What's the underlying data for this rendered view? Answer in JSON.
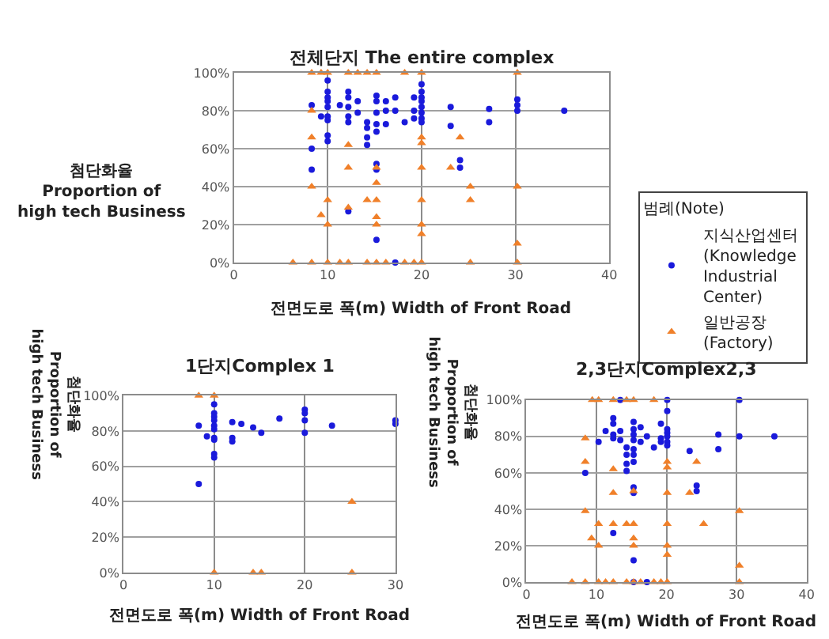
{
  "chart_data": [
    {
      "type": "scatter",
      "title": "전체단지 The entire complex",
      "xlabel": "전면도로 폭(m) Width of Front Road",
      "ylabel": "첨단화율\nProportion of\nhigh tech Business",
      "legend_title": "범례(Note)",
      "legend": "right",
      "grid": true,
      "xlim": [
        0,
        40
      ],
      "xticks": [
        0,
        10,
        20,
        30,
        40
      ],
      "ylim": [
        0,
        1
      ],
      "yticks": [
        {
          "value": 0,
          "label": "0%"
        },
        {
          "value": 0.2,
          "label": "20%"
        },
        {
          "value": 0.4,
          "label": "40%"
        },
        {
          "value": 0.6,
          "label": "60%"
        },
        {
          "value": 0.8,
          "label": "80%"
        },
        {
          "value": 1,
          "label": "100%"
        }
      ],
      "series": [
        {
          "name": "지식산업센터(Knowledge Industrial Center)",
          "color": "#1a1adb",
          "marker": "circle",
          "x": [
            8.3,
            8.3,
            8.3,
            9.3,
            10,
            10,
            10,
            10,
            10,
            10,
            10,
            10,
            10,
            11.3,
            12.2,
            12.2,
            12.2,
            12.2,
            12.2,
            12.2,
            13.2,
            13.2,
            14.2,
            14.2,
            14.2,
            14.2,
            15.2,
            15.2,
            15.2,
            15.2,
            15.2,
            15.2,
            15.2,
            15.2,
            16.2,
            16.2,
            16.2,
            17.2,
            17.2,
            17.2,
            18.2,
            19.2,
            19.2,
            19.2,
            20,
            20,
            20,
            20,
            20,
            20,
            20,
            20,
            23.1,
            23.1,
            24.1,
            24.1,
            27.2,
            27.2,
            30.2,
            30.2,
            30.2,
            35.2
          ],
          "values": [
            0.83,
            0.6,
            0.49,
            0.77,
            0.96,
            0.9,
            0.87,
            0.85,
            0.82,
            0.77,
            0.75,
            0.67,
            0.64,
            0.83,
            0.9,
            0.87,
            0.82,
            0.77,
            0.74,
            0.27,
            0.85,
            0.79,
            0.74,
            0.71,
            0.66,
            0.62,
            0.88,
            0.85,
            0.79,
            0.73,
            0.69,
            0.52,
            0.49,
            0.12,
            0.85,
            0.8,
            0.73,
            0.87,
            0.8,
            0,
            0.74,
            0.87,
            0.8,
            0.76,
            0.94,
            0.9,
            0.87,
            0.85,
            0.82,
            0.79,
            0.76,
            0.74,
            0.82,
            0.72,
            0.54,
            0.5,
            0.81,
            0.74,
            0.86,
            0.83,
            0.8,
            0.8
          ]
        },
        {
          "name": "일반공장(Factory)",
          "color": "#f0802a",
          "marker": "triangle",
          "x": [
            6.3,
            8.3,
            8.3,
            8.3,
            8.3,
            8.3,
            9.3,
            9.3,
            10,
            10,
            10,
            10,
            11.3,
            12.2,
            12.2,
            12.2,
            12.2,
            12.2,
            13.2,
            14.2,
            14.2,
            14.2,
            15.2,
            15.2,
            15.2,
            15.2,
            15.2,
            15.2,
            15.2,
            16.2,
            18.2,
            18.2,
            19.2,
            20,
            20,
            20,
            20,
            20,
            20,
            20,
            20,
            23.1,
            24.1,
            25.2,
            25.2,
            25.2,
            30.2,
            30.2,
            30.2,
            30.2
          ],
          "values": [
            0,
            1,
            0.8,
            0.66,
            0.4,
            0,
            1,
            0.25,
            1,
            0.33,
            0.2,
            0,
            0,
            1,
            0.62,
            0.5,
            0.29,
            0,
            1,
            1,
            0.33,
            0,
            1,
            0.5,
            0.42,
            0.33,
            0.24,
            0.2,
            0,
            0,
            1,
            0,
            0,
            1,
            0.66,
            0.63,
            0.5,
            0.33,
            0.2,
            0.15,
            0,
            0.5,
            0.66,
            0.4,
            0.33,
            0,
            1,
            0.4,
            0.1,
            0
          ]
        }
      ]
    },
    {
      "type": "scatter",
      "title": "1단지Complex 1",
      "xlabel": "전면도로 폭(m) Width of Front Road",
      "ylabel": "첨단화율\nProportion of\nhigh tech Business",
      "grid": true,
      "xlim": [
        0,
        30
      ],
      "xticks": [
        0,
        10,
        20,
        30
      ],
      "ylim": [
        0,
        1
      ],
      "yticks": [
        {
          "value": 0,
          "label": "0%"
        },
        {
          "value": 0.2,
          "label": "20%"
        },
        {
          "value": 0.4,
          "label": "40%"
        },
        {
          "value": 0.6,
          "label": "60%"
        },
        {
          "value": 0.8,
          "label": "80%"
        },
        {
          "value": 1,
          "label": "100%"
        }
      ],
      "series": [
        {
          "color": "#1a1adb",
          "marker": "circle",
          "x": [
            8.3,
            8.3,
            9.2,
            10,
            10,
            10,
            10,
            10,
            10,
            10,
            10,
            10,
            10,
            12,
            12,
            12,
            13,
            14.3,
            15.2,
            17.2,
            20,
            20,
            20,
            20,
            23,
            30,
            30
          ],
          "values": [
            0.83,
            0.5,
            0.77,
            0.95,
            0.9,
            0.88,
            0.86,
            0.83,
            0.81,
            0.76,
            0.75,
            0.67,
            0.65,
            0.85,
            0.76,
            0.74,
            0.84,
            0.82,
            0.79,
            0.87,
            0.92,
            0.9,
            0.86,
            0.79,
            0.83,
            0.86,
            0.84
          ]
        },
        {
          "color": "#f0802a",
          "marker": "triangle",
          "x": [
            8.3,
            10,
            10,
            14.3,
            15.2,
            25.2,
            25.2
          ],
          "values": [
            1,
            1,
            0,
            0,
            0,
            0.4,
            0
          ]
        }
      ]
    },
    {
      "type": "scatter",
      "title": "2,3단지Complex2,3",
      "xlabel": "전면도로 폭(m) Width of Front Road",
      "ylabel": "첨단화율\nProportion of\nhigh tech Business",
      "grid": true,
      "xlim": [
        0,
        40
      ],
      "xticks": [
        0,
        10,
        20,
        30,
        40
      ],
      "ylim": [
        0,
        1
      ],
      "yticks": [
        {
          "value": 0,
          "label": "0%"
        },
        {
          "value": 0.2,
          "label": "20%"
        },
        {
          "value": 0.4,
          "label": "40%"
        },
        {
          "value": 0.6,
          "label": "60%"
        },
        {
          "value": 0.8,
          "label": "80%"
        },
        {
          "value": 1,
          "label": "100%"
        }
      ],
      "series": [
        {
          "color": "#1a1adb",
          "marker": "circle",
          "x": [
            8.4,
            10.3,
            11.3,
            12.4,
            12.4,
            12.4,
            12.4,
            12.4,
            13.4,
            13.4,
            13.4,
            14.3,
            14.3,
            14.3,
            14.3,
            15.3,
            15.3,
            15.3,
            15.3,
            15.3,
            15.3,
            15.3,
            15.3,
            15.3,
            15.3,
            15.3,
            16.3,
            16.3,
            17.2,
            17.2,
            18.2,
            19.2,
            19.2,
            19.2,
            20.1,
            20.1,
            20.1,
            20.1,
            20.1,
            20.1,
            20.1,
            23.3,
            24.3,
            24.3,
            27.4,
            27.4,
            30.4,
            30.4,
            35.4
          ],
          "values": [
            0.6,
            0.77,
            0.83,
            0.9,
            0.87,
            0.81,
            0.79,
            0.27,
            1,
            0.83,
            0.78,
            0.74,
            0.7,
            0.65,
            0.61,
            0.88,
            0.84,
            0.81,
            0.78,
            0.73,
            0.7,
            0.66,
            0.52,
            0.49,
            0.12,
            0,
            0.85,
            0.77,
            0.8,
            0,
            0.74,
            0.87,
            0.79,
            0.77,
            1,
            0.94,
            0.84,
            0.82,
            0.8,
            0.77,
            0.75,
            0.72,
            0.53,
            0.5,
            0.81,
            0.73,
            1,
            0.8,
            0.8
          ]
        },
        {
          "color": "#f0802a",
          "marker": "triangle",
          "x": [
            6.5,
            8.4,
            8.4,
            8.4,
            8.4,
            9.4,
            9.3,
            10.3,
            10.3,
            10.3,
            10.3,
            11.3,
            12.4,
            12.4,
            12.4,
            12.4,
            12.4,
            14.3,
            14.3,
            14.3,
            15.3,
            15.3,
            15.3,
            15.3,
            15.3,
            15.3,
            16.3,
            18.2,
            18.2,
            19.2,
            20.1,
            20.1,
            20.1,
            20.1,
            20.1,
            20.1,
            20.1,
            23.3,
            24.3,
            25.3,
            30.4,
            30.4,
            30.4
          ],
          "values": [
            0,
            0.79,
            0.66,
            0.39,
            0,
            1,
            0.24,
            1,
            0.32,
            0.2,
            0,
            0,
            1,
            0.62,
            0.49,
            0.32,
            0,
            1,
            0.32,
            0,
            1,
            0.5,
            0.32,
            0.24,
            0.2,
            0,
            0,
            1,
            0,
            0,
            0.66,
            0.63,
            0.49,
            0.32,
            0.2,
            0.15,
            0,
            0.49,
            0.66,
            0.32,
            0.39,
            0.09,
            0
          ]
        }
      ]
    }
  ]
}
